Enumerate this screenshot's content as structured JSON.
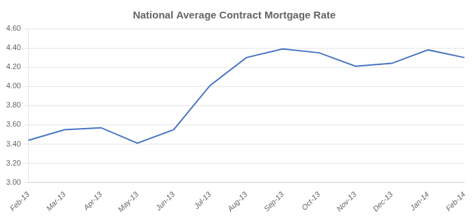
{
  "chart_data": {
    "type": "line",
    "title": "National Average Contract Mortgage Rate",
    "categories": [
      "Feb-13",
      "Mar-13",
      "Apr-13",
      "May-13",
      "Jun-13",
      "Jul-13",
      "Aug-13",
      "Sep-13",
      "Oct-13",
      "Nov-13",
      "Dec-13",
      "Jan-14",
      "Feb-14"
    ],
    "values": [
      3.44,
      3.55,
      3.57,
      3.41,
      3.55,
      4.01,
      4.3,
      4.39,
      4.35,
      4.21,
      4.24,
      4.38,
      4.3
    ],
    "color": "#4472C4",
    "ylim": [
      3.0,
      4.6
    ],
    "yticks": [
      {
        "value": 3.0,
        "label": "3.00"
      },
      {
        "value": 3.2,
        "label": "3.20"
      },
      {
        "value": 3.4,
        "label": "3.40"
      },
      {
        "value": 3.6,
        "label": "3.60"
      },
      {
        "value": 3.8,
        "label": "3.80"
      },
      {
        "value": 4.0,
        "label": "4.00"
      },
      {
        "value": 4.2,
        "label": "4.20"
      },
      {
        "value": 4.4,
        "label": "4.40"
      },
      {
        "value": 4.6,
        "label": "4.60"
      }
    ],
    "grid": true
  }
}
